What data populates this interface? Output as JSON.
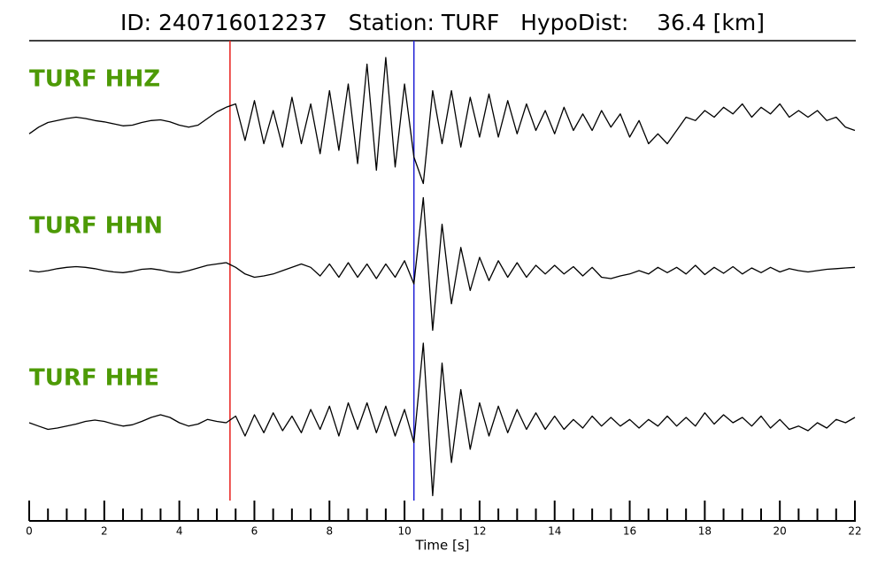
{
  "chart_data": {
    "type": "line",
    "title": "ID: 240716012237   Station: TURF   HypoDist:    36.4 [km]",
    "xlabel": "Time [s]",
    "xlim": [
      0,
      22
    ],
    "xticks": [
      0,
      2,
      4,
      6,
      8,
      10,
      12,
      14,
      16,
      18,
      20,
      22
    ],
    "xminor": [
      0.5,
      1,
      1.5,
      2.5,
      3,
      3.5,
      4.5,
      5,
      5.5,
      6.5,
      7,
      7.5,
      8.5,
      9,
      9.5,
      10.5,
      11,
      11.5,
      12.5,
      13,
      13.5,
      14.5,
      15,
      15.5,
      16.5,
      17,
      17.5,
      18.5,
      19,
      19.5,
      20.5,
      21,
      21.5
    ],
    "ylim": [
      -1,
      1
    ],
    "label_color": "#4d9a06",
    "vlines": [
      {
        "x": 5.35,
        "color": "#e8201b"
      },
      {
        "x": 10.25,
        "color": "#1f1fd6"
      }
    ],
    "x": [
      0,
      0.25,
      0.5,
      0.75,
      1,
      1.25,
      1.5,
      1.75,
      2,
      2.25,
      2.5,
      2.75,
      3,
      3.25,
      3.5,
      3.75,
      4,
      4.25,
      4.5,
      4.75,
      5,
      5.25,
      5.5,
      5.75,
      6,
      6.25,
      6.5,
      6.75,
      7,
      7.25,
      7.5,
      7.75,
      8,
      8.25,
      8.5,
      8.75,
      9,
      9.25,
      9.5,
      9.75,
      10,
      10.25,
      10.5,
      10.75,
      11,
      11.25,
      11.5,
      11.75,
      12,
      12.25,
      12.5,
      12.75,
      13,
      13.25,
      13.5,
      13.75,
      14,
      14.25,
      14.5,
      14.75,
      15,
      15.25,
      15.5,
      15.75,
      16,
      16.25,
      16.5,
      16.75,
      17,
      17.25,
      17.5,
      17.75,
      18,
      18.25,
      18.5,
      18.75,
      19,
      19.25,
      19.5,
      19.75,
      20,
      20.25,
      20.5,
      20.75,
      21,
      21.25,
      21.5,
      21.75,
      22
    ],
    "series": [
      {
        "name": "TURF HHZ",
        "color": "#000000",
        "values": [
          -0.15,
          -0.05,
          0.02,
          0.05,
          0.08,
          0.1,
          0.08,
          0.05,
          0.03,
          0.0,
          -0.03,
          -0.02,
          0.02,
          0.05,
          0.06,
          0.03,
          -0.02,
          -0.05,
          -0.02,
          0.08,
          0.18,
          0.25,
          0.3,
          -0.25,
          0.35,
          -0.3,
          0.2,
          -0.35,
          0.4,
          -0.3,
          0.3,
          -0.45,
          0.5,
          -0.4,
          0.6,
          -0.6,
          0.9,
          -0.7,
          1.0,
          -0.65,
          0.6,
          -0.5,
          -0.9,
          0.5,
          -0.3,
          0.5,
          -0.35,
          0.4,
          -0.2,
          0.45,
          -0.2,
          0.35,
          -0.15,
          0.3,
          -0.1,
          0.2,
          -0.15,
          0.25,
          -0.1,
          0.15,
          -0.1,
          0.2,
          -0.05,
          0.15,
          -0.2,
          0.05,
          -0.3,
          -0.15,
          -0.3,
          -0.1,
          0.1,
          0.05,
          0.2,
          0.1,
          0.25,
          0.15,
          0.3,
          0.1,
          0.25,
          0.15,
          0.3,
          0.1,
          0.2,
          0.1,
          0.2,
          0.05,
          0.1,
          -0.05,
          -0.1
        ]
      },
      {
        "name": "TURF HHN",
        "color": "#000000",
        "values": [
          0.0,
          -0.02,
          0.0,
          0.03,
          0.05,
          0.06,
          0.05,
          0.03,
          0.0,
          -0.02,
          -0.03,
          -0.01,
          0.02,
          0.03,
          0.01,
          -0.02,
          -0.03,
          0.0,
          0.04,
          0.08,
          0.1,
          0.12,
          0.05,
          -0.05,
          -0.1,
          -0.08,
          -0.05,
          0.0,
          0.05,
          0.1,
          0.05,
          -0.08,
          0.1,
          -0.1,
          0.12,
          -0.1,
          0.1,
          -0.12,
          0.1,
          -0.1,
          0.15,
          -0.2,
          1.1,
          -0.9,
          0.7,
          -0.5,
          0.35,
          -0.3,
          0.2,
          -0.15,
          0.15,
          -0.1,
          0.12,
          -0.1,
          0.08,
          -0.05,
          0.08,
          -0.05,
          0.06,
          -0.08,
          0.05,
          -0.1,
          -0.12,
          -0.08,
          -0.05,
          0.0,
          -0.05,
          0.05,
          -0.03,
          0.05,
          -0.05,
          0.08,
          -0.06,
          0.05,
          -0.04,
          0.06,
          -0.05,
          0.04,
          -0.03,
          0.05,
          -0.02,
          0.03,
          0.0,
          -0.02,
          0.0,
          0.02,
          0.03,
          0.04,
          0.05
        ]
      },
      {
        "name": "TURF HHE",
        "color": "#000000",
        "values": [
          0.0,
          -0.05,
          -0.1,
          -0.08,
          -0.05,
          -0.02,
          0.02,
          0.04,
          0.02,
          -0.02,
          -0.05,
          -0.03,
          0.02,
          0.08,
          0.12,
          0.08,
          0.0,
          -0.05,
          -0.02,
          0.05,
          0.02,
          0.0,
          0.1,
          -0.2,
          0.12,
          -0.15,
          0.15,
          -0.12,
          0.1,
          -0.15,
          0.2,
          -0.1,
          0.25,
          -0.2,
          0.3,
          -0.1,
          0.3,
          -0.15,
          0.25,
          -0.2,
          0.2,
          -0.3,
          1.2,
          -1.1,
          0.9,
          -0.6,
          0.5,
          -0.4,
          0.3,
          -0.2,
          0.25,
          -0.15,
          0.2,
          -0.1,
          0.15,
          -0.1,
          0.1,
          -0.1,
          0.05,
          -0.08,
          0.1,
          -0.05,
          0.08,
          -0.05,
          0.05,
          -0.08,
          0.05,
          -0.05,
          0.1,
          -0.05,
          0.08,
          -0.05,
          0.15,
          -0.02,
          0.12,
          0.0,
          0.08,
          -0.05,
          0.1,
          -0.08,
          0.05,
          -0.1,
          -0.05,
          -0.12,
          0.0,
          -0.08,
          0.05,
          0.0,
          0.08
        ]
      }
    ]
  }
}
